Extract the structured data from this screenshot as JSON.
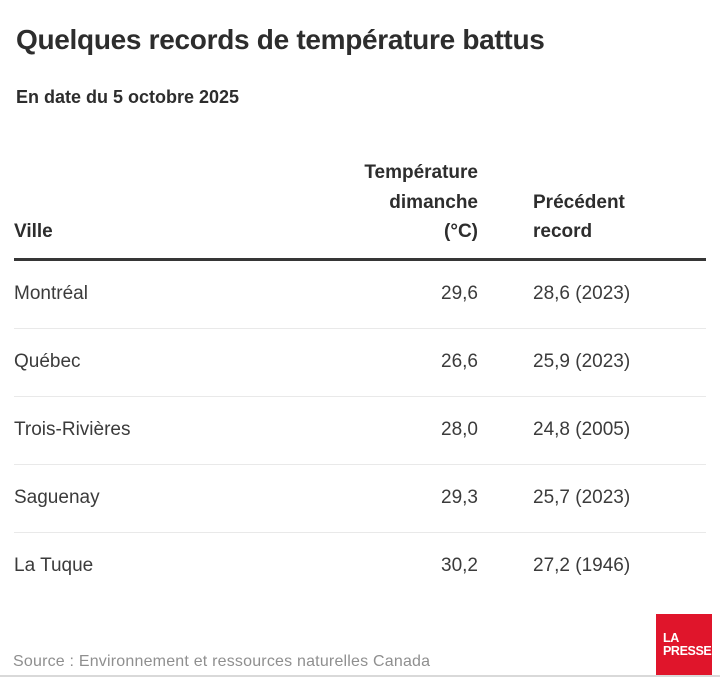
{
  "chart_data": {
    "type": "table",
    "title": "Quelques records de température battus",
    "subtitle": "En date du 5 octobre 2025",
    "columns": [
      "Ville",
      "Température dimanche (°C)",
      "Précédent record"
    ],
    "rows": [
      [
        "Montréal",
        "29,6",
        "28,6 (2023)"
      ],
      [
        "Québec",
        "26,6",
        "25,9 (2023)"
      ],
      [
        "Trois-Rivières",
        "28,0",
        "24,8 (2005)"
      ],
      [
        "Saguenay",
        "29,3",
        "25,7 (2023)"
      ],
      [
        "La Tuque",
        "30,2",
        "27,2 (1946)"
      ]
    ],
    "source": "Source : Environnement et ressources naturelles Canada"
  },
  "ui": {
    "columns_wrapped": [
      "Ville",
      "Température\ndimanche (°C)",
      "Précédent\nrecord"
    ],
    "logo": {
      "line1": "LA",
      "line2": "PRESSE",
      "brand_color": "#e0152b"
    },
    "text_colors": {
      "heading": "#2d2d2d",
      "body": "#3b3b3b",
      "source": "#8f8f8f"
    }
  }
}
